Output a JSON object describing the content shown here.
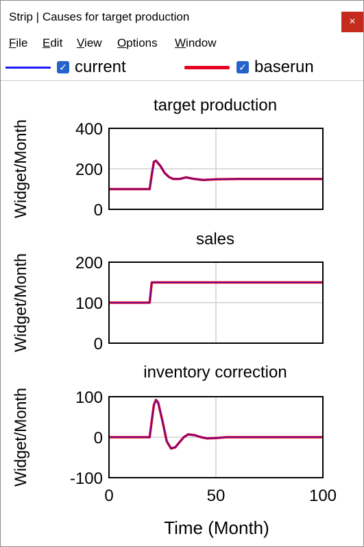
{
  "window": {
    "title": "Strip | Causes for target production",
    "close_glyph": "×"
  },
  "menu": {
    "file": {
      "u": "F",
      "rest": "ile"
    },
    "edit": {
      "u": "E",
      "rest": "dit"
    },
    "view": {
      "u": "V",
      "rest": "iew"
    },
    "options": {
      "u": "O",
      "rest": "ptions"
    },
    "window": {
      "u": "W",
      "rest": "indow"
    }
  },
  "legend": {
    "current": {
      "label": "current",
      "color": "#1a1aff",
      "checked": true
    },
    "baserun": {
      "label": "baserun",
      "color": "#e8001e",
      "checked": true
    }
  },
  "chart_data": [
    {
      "type": "line",
      "title": "target production",
      "ylabel": "Widget/Month",
      "ylim": [
        0,
        400
      ],
      "yticks": [
        "400",
        "200",
        "0"
      ],
      "xlim": [
        0,
        100
      ],
      "series": [
        {
          "name": "current",
          "x": [
            0,
            19,
            20,
            21,
            22,
            24,
            26,
            28,
            30,
            33,
            36,
            40,
            44,
            50,
            60,
            100
          ],
          "y": [
            100,
            100,
            170,
            235,
            240,
            215,
            180,
            160,
            150,
            150,
            158,
            150,
            145,
            148,
            150,
            150
          ]
        }
      ]
    },
    {
      "type": "line",
      "title": "sales",
      "ylabel": "Widget/Month",
      "ylim": [
        0,
        200
      ],
      "yticks": [
        "200",
        "100",
        "0"
      ],
      "xlim": [
        0,
        100
      ],
      "series": [
        {
          "name": "current",
          "x": [
            0,
            19,
            20,
            100
          ],
          "y": [
            100,
            100,
            150,
            150
          ]
        }
      ]
    },
    {
      "type": "line",
      "title": "inventory correction",
      "ylabel": "Widget/Month",
      "ylim": [
        -100,
        100
      ],
      "yticks": [
        "100",
        "0",
        "-100"
      ],
      "xlim": [
        0,
        100
      ],
      "xticks": [
        "0",
        "50",
        "100"
      ],
      "xlabel": "Time (Month)",
      "series": [
        {
          "name": "current",
          "x": [
            0,
            19,
            20,
            21,
            22,
            23,
            25,
            27,
            29,
            31,
            33,
            35,
            37,
            40,
            43,
            46,
            50,
            55,
            60,
            100
          ],
          "y": [
            0,
            0,
            40,
            80,
            92,
            85,
            40,
            -10,
            -28,
            -25,
            -12,
            0,
            7,
            5,
            0,
            -3,
            -2,
            0,
            0,
            0
          ]
        }
      ]
    }
  ]
}
